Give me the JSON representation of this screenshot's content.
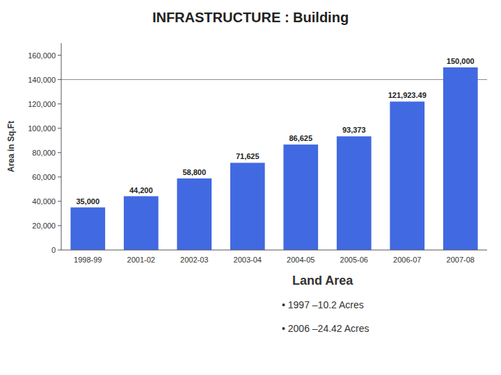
{
  "chart_data": {
    "type": "bar",
    "title": "INFRASTRUCTURE : Building",
    "categories": [
      "1998-99",
      "2001-02",
      "2002-03",
      "2003-04",
      "2004-05",
      "2005-06",
      "2006-07",
      "2007-08"
    ],
    "values": [
      35000,
      44200,
      58800,
      71625,
      86625,
      93373,
      121923.49,
      150000
    ],
    "value_labels": [
      "35,000",
      "44,200",
      "58,800",
      "71,625",
      "86,625",
      "93,373",
      "121,923.49",
      "150,000"
    ],
    "data_labels": true,
    "color": "#4169E1",
    "y_label": "Area in Sq.Ft",
    "ylim": [
      0,
      170000
    ],
    "yticks": [
      0,
      {
        "value": 20000,
        "label": "20,000"
      },
      {
        "value": 40000,
        "label": "40,000"
      },
      {
        "value": 60000,
        "label": "60,000"
      },
      {
        "value": 80000,
        "label": "80,000"
      },
      {
        "value": 100000,
        "label": "100,000"
      },
      {
        "value": 120000,
        "label": "120,000"
      },
      {
        "value": 140000,
        "label": "140,000"
      },
      {
        "value": 160000,
        "label": "160,000"
      }
    ],
    "grid": false,
    "reference_line": {
      "value": 140000,
      "color": "#888888"
    },
    "annotations": [
      "Land Area",
      "• 1997 –10.2 Acres",
      "• 2006 –24.42 Acres"
    ]
  }
}
